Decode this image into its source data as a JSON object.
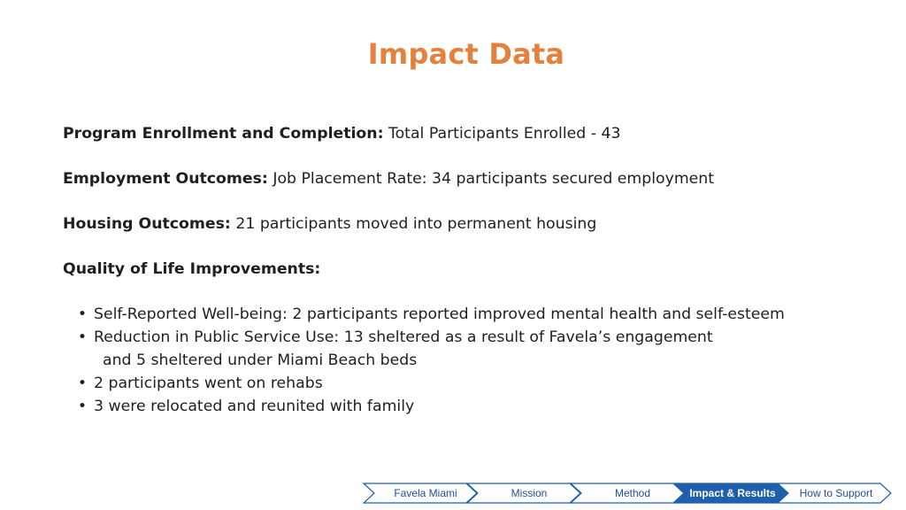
{
  "slide": {
    "title": "Impact Data"
  },
  "sections": [
    {
      "label": "Program Enrollment and Completion:",
      "text": " Total Participants Enrolled - 43"
    },
    {
      "label": "Employment Outcomes:",
      "text": " Job Placement Rate: 34 participants secured employment"
    },
    {
      "label": "Housing Outcomes:",
      "text": " 21 participants moved into permanent housing"
    },
    {
      "label": "Quality of Life Improvements:",
      "text": ""
    }
  ],
  "bullets": [
    {
      "text": "Self-Reported Well-being: 2 participants reported improved mental health and self-esteem"
    },
    {
      "text": "Reduction in Public Service Use: 13 sheltered as a result of Favela’s engagement",
      "continuation": "and 5 sheltered under Miami Beach beds"
    },
    {
      "text": "2 participants went on rehabs"
    },
    {
      "text": "3 were relocated and reunited with family"
    }
  ],
  "bullet_glyph": "•",
  "nav": {
    "items": [
      {
        "label": "Favela Miami",
        "active": false
      },
      {
        "label": "Mission",
        "active": false
      },
      {
        "label": "Method",
        "active": false
      },
      {
        "label": "Impact & Results",
        "active": true
      },
      {
        "label": "How to Support",
        "active": false
      }
    ],
    "active_color": "#1F5FAD",
    "border_color": "#1F5FAD"
  },
  "colors": {
    "title": "#E3823D",
    "text": "#1F1F1F"
  }
}
